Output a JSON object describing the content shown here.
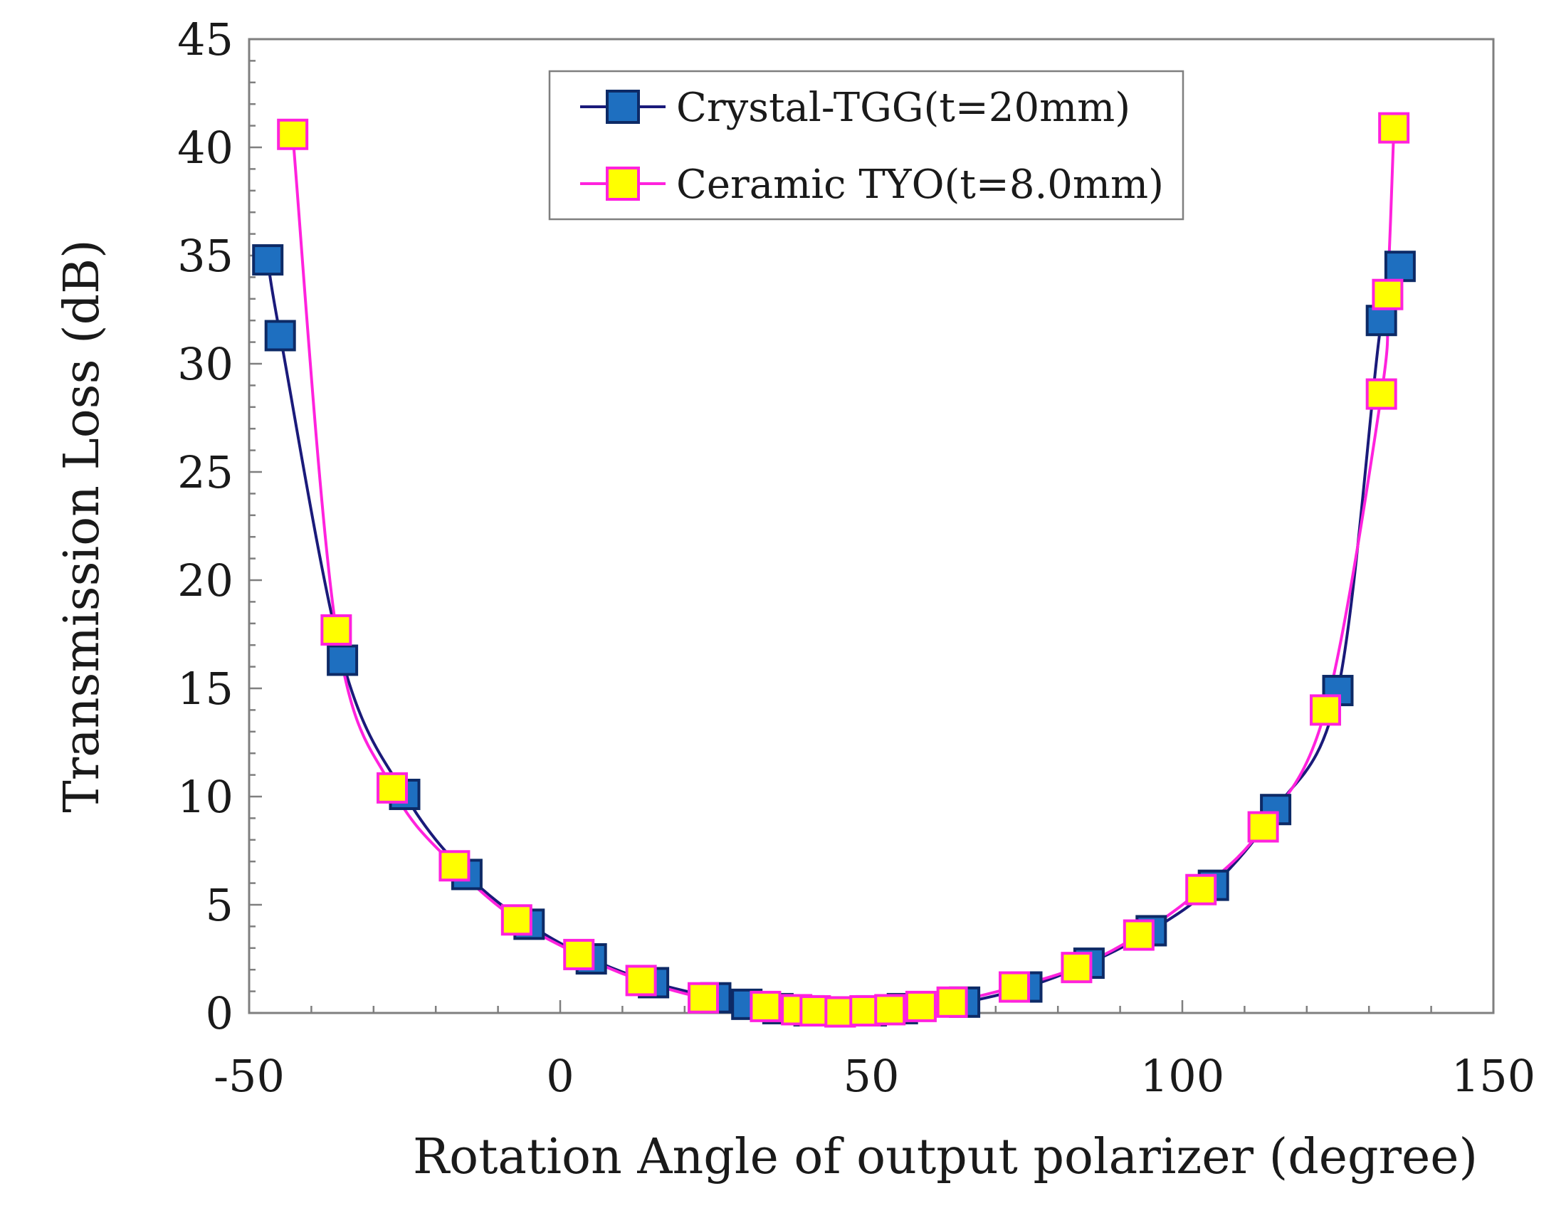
{
  "chart_data": {
    "type": "line",
    "title": "",
    "xlabel": "Rotation Angle of output polarizer (degree)",
    "ylabel": "Transmission Loss (dB)",
    "xlim": [
      -50,
      150
    ],
    "ylim": [
      0,
      45
    ],
    "xticks": [
      -50,
      0,
      50,
      100,
      150
    ],
    "xtick_labels": [
      "-50",
      "0",
      "50",
      "100",
      "150"
    ],
    "yticks": [
      0,
      5,
      10,
      15,
      20,
      25,
      30,
      35,
      40,
      45
    ],
    "ytick_labels": [
      "0",
      "5",
      "10",
      "15",
      "20",
      "25",
      "30",
      "35",
      "40",
      "45"
    ],
    "grid": false,
    "legend_position": "top-center",
    "series": [
      {
        "name": "Crystal-TGG(t=20mm)",
        "marker": "square",
        "line_color": "#1a1a7a",
        "marker_fill": "#1e6fc0",
        "marker_edge": "#0d2a66",
        "x": [
          -47,
          -45,
          -35,
          -25,
          -15,
          -5,
          5,
          15,
          25,
          30,
          35,
          40,
          45,
          50,
          55,
          65,
          75,
          85,
          95,
          105,
          115,
          125,
          132,
          135
        ],
        "y": [
          34.8,
          31.3,
          16.3,
          10.1,
          6.4,
          4.1,
          2.5,
          1.4,
          0.7,
          0.4,
          0.2,
          0.1,
          0.05,
          0.1,
          0.2,
          0.5,
          1.2,
          2.3,
          3.8,
          5.9,
          9.4,
          14.9,
          32.0,
          34.5
        ]
      },
      {
        "name": "Ceramic TYO(t=8.0mm)",
        "marker": "square",
        "line_color": "#ff22dd",
        "marker_fill": "#ffff00",
        "marker_edge": "#ff22dd",
        "x": [
          -43,
          -36,
          -27,
          -17,
          -7,
          3,
          13,
          23,
          33,
          38,
          41,
          45,
          49,
          53,
          58,
          63,
          73,
          83,
          93,
          103,
          113,
          123,
          132,
          133,
          134
        ],
        "y": [
          40.6,
          17.7,
          10.4,
          6.8,
          4.3,
          2.7,
          1.5,
          0.7,
          0.3,
          0.15,
          0.1,
          0.05,
          0.1,
          0.15,
          0.3,
          0.5,
          1.2,
          2.1,
          3.6,
          5.7,
          8.6,
          14.0,
          28.6,
          33.2,
          40.9
        ]
      }
    ]
  }
}
